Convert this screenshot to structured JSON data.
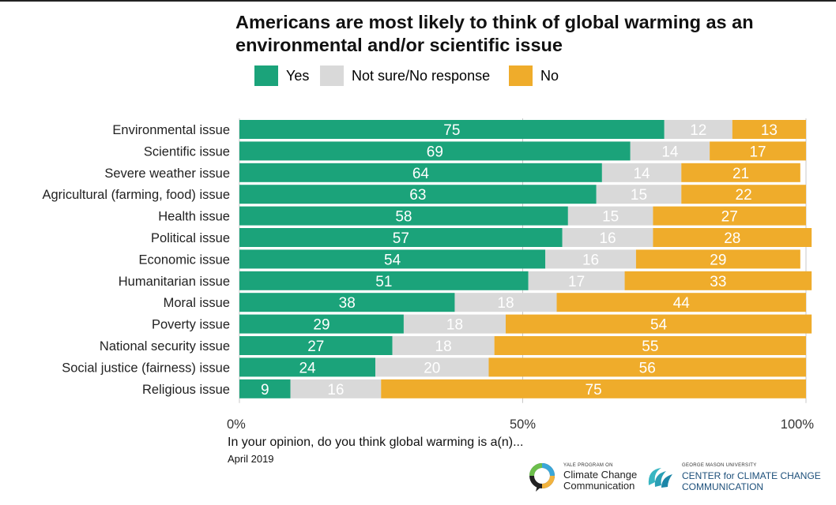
{
  "chart_data": {
    "type": "bar",
    "orientation": "horizontal",
    "stacked": true,
    "title": "Americans are most likely to think of global warming as an environmental and/or scientific issue",
    "categories": [
      "Environmental issue",
      "Scientific issue",
      "Severe weather issue",
      "Agricultural (farming, food) issue",
      "Health issue",
      "Political issue",
      "Economic issue",
      "Humanitarian issue",
      "Moral issue",
      "Poverty issue",
      "National security issue",
      "Social justice (fairness) issue",
      "Religious issue"
    ],
    "series": [
      {
        "name": "Yes",
        "color": "#1ba37a",
        "values": [
          75,
          69,
          64,
          63,
          58,
          57,
          54,
          51,
          38,
          29,
          27,
          24,
          9
        ]
      },
      {
        "name": "Not sure/No response",
        "color": "#d9d9d9",
        "values": [
          12,
          14,
          14,
          15,
          15,
          16,
          16,
          17,
          18,
          18,
          18,
          20,
          16
        ]
      },
      {
        "name": "No",
        "color": "#efac2b",
        "values": [
          13,
          17,
          21,
          22,
          27,
          28,
          29,
          33,
          44,
          54,
          55,
          56,
          75
        ]
      }
    ],
    "xlim": [
      0,
      100
    ],
    "xticks": [
      0,
      50,
      100
    ],
    "xtick_labels": [
      "0%",
      "50%",
      "100%"
    ],
    "grid": true,
    "legend_position": "top",
    "xlabel": "",
    "ylabel": ""
  },
  "question": "In your opinion, do you think global warming is a(n)...",
  "date": "April 2019",
  "logos": {
    "yale_small": "YALE PROGRAM ON",
    "yale_line1": "Climate Change",
    "yale_line2": "Communication",
    "gmu_small": "GEORGE MASON UNIVERSITY",
    "gmu_line1": "CENTER for CLIMATE CHANGE",
    "gmu_line2": "COMMUNICATION"
  }
}
